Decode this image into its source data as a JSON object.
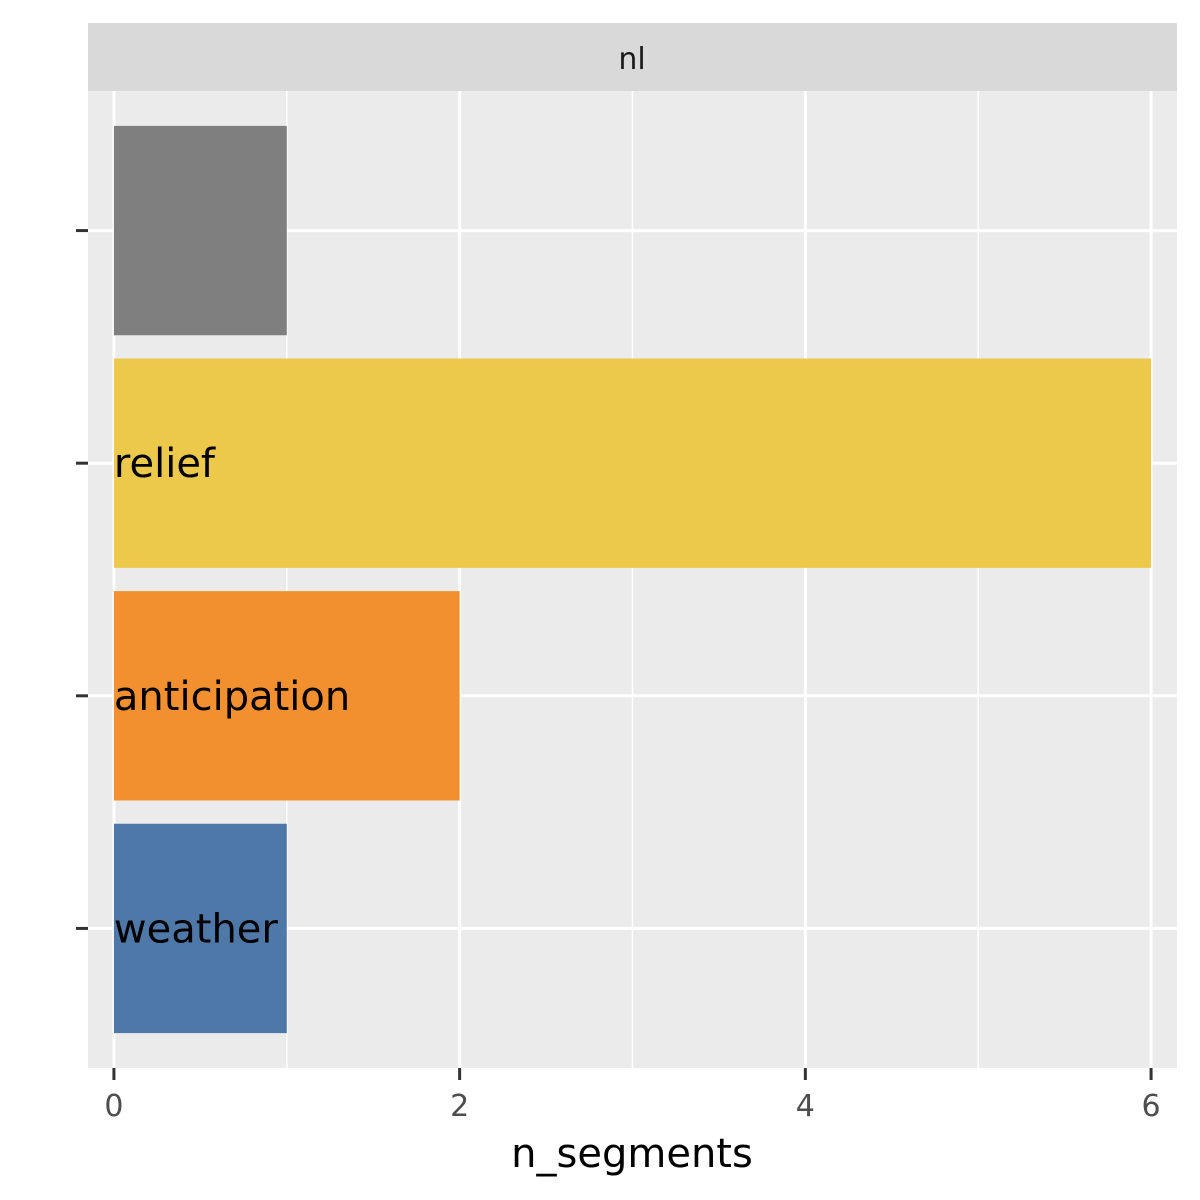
{
  "chart_data": {
    "type": "bar",
    "orientation": "horizontal",
    "facet": "nl",
    "xlabel": "n_segments",
    "ylabel": "",
    "xlim": [
      -0.15,
      6.15
    ],
    "x_ticks": [
      0,
      2,
      4,
      6
    ],
    "bars": [
      {
        "label": "",
        "value": 1,
        "color": "#7f7f7f"
      },
      {
        "label": "relief",
        "value": 6,
        "color": "#ecc94a"
      },
      {
        "label": "anticipation",
        "value": 2,
        "color": "#f28f2e"
      },
      {
        "label": "weather",
        "value": 1,
        "color": "#4e78a7"
      }
    ],
    "panel_background": "#ebebeb",
    "strip_background": "#d9d9d9",
    "grid": true,
    "legend": "none"
  }
}
